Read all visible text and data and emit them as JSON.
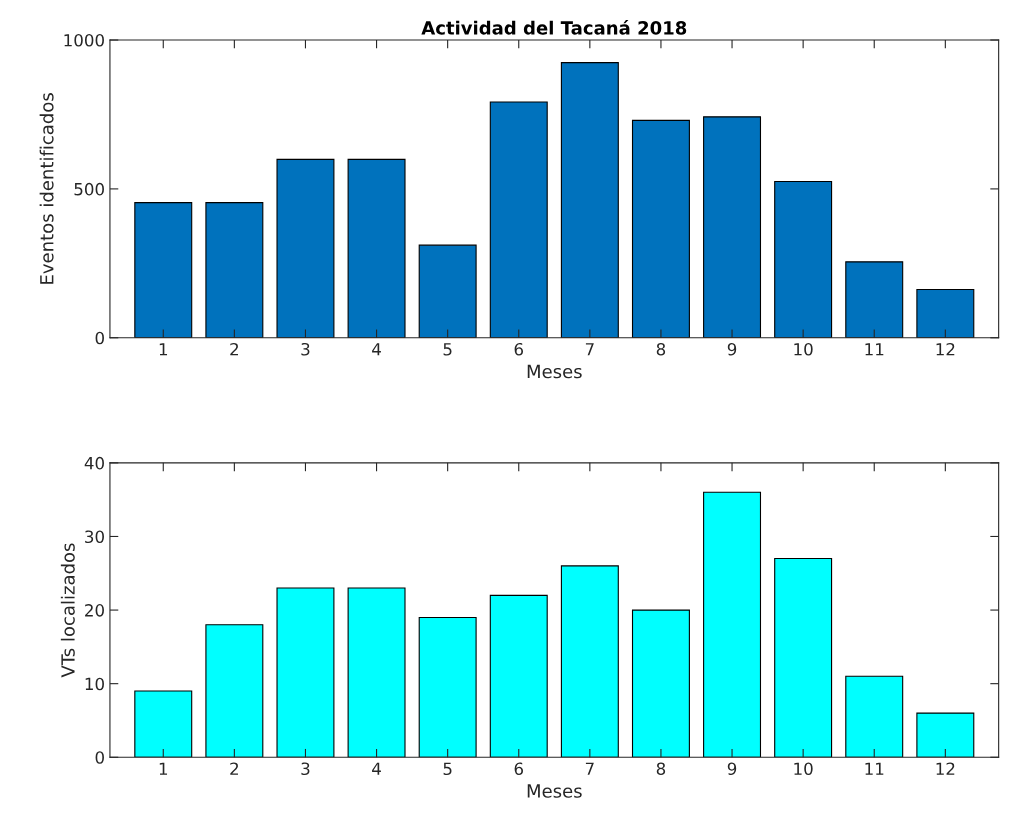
{
  "chart_data": [
    {
      "type": "bar",
      "title": "Actividad del Tacaná 2018",
      "xlabel": "Meses",
      "ylabel": "Eventos identificados",
      "categories": [
        "1",
        "2",
        "3",
        "4",
        "5",
        "6",
        "7",
        "8",
        "9",
        "10",
        "11",
        "12"
      ],
      "values": [
        454,
        454,
        599,
        599,
        311,
        792,
        924,
        730,
        742,
        525,
        255,
        162
      ],
      "color": "#0072bd",
      "ylim": [
        0,
        1000
      ],
      "yticks": [
        0,
        500,
        1000
      ],
      "grid": false
    },
    {
      "type": "bar",
      "xlabel": "Meses",
      "ylabel": "VTs localizados",
      "categories": [
        "1",
        "2",
        "3",
        "4",
        "5",
        "6",
        "7",
        "8",
        "9",
        "10",
        "11",
        "12"
      ],
      "values": [
        9,
        18,
        23,
        23,
        19,
        22,
        26,
        20,
        36,
        27,
        11,
        6
      ],
      "color": "#00ffff",
      "ylim": [
        0,
        40
      ],
      "yticks": [
        0,
        10,
        20,
        30,
        40
      ],
      "grid": false
    }
  ]
}
